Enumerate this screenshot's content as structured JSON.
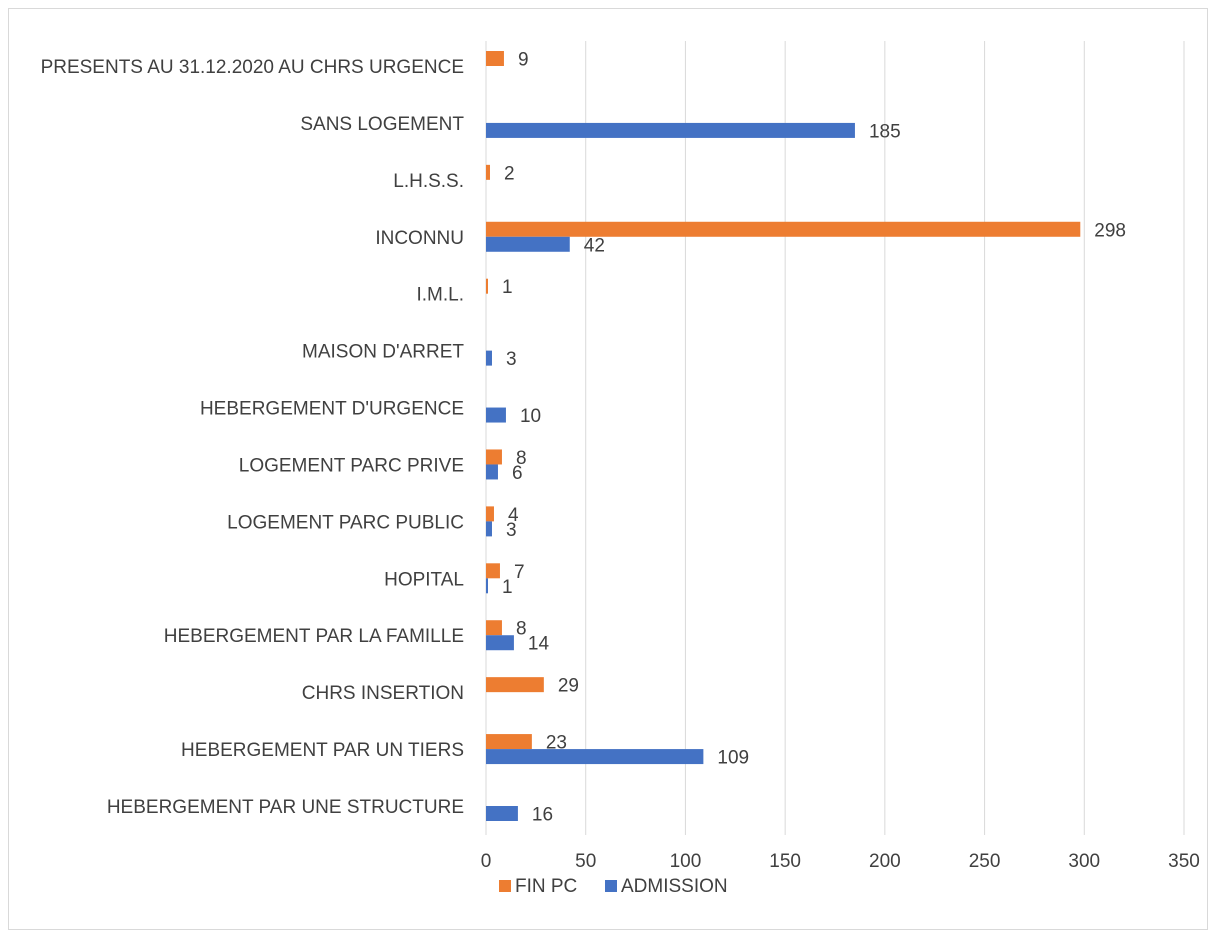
{
  "chart_data": {
    "type": "bar",
    "orientation": "horizontal",
    "title": "",
    "xlabel": "",
    "ylabel": "",
    "categories": [
      "HEBERGEMENT PAR UNE STRUCTURE",
      "HEBERGEMENT PAR UN TIERS",
      "CHRS INSERTION",
      "HEBERGEMENT PAR LA FAMILLE",
      "HOPITAL",
      "LOGEMENT PARC PUBLIC",
      "LOGEMENT PARC PRIVE",
      "HEBERGEMENT D'URGENCE",
      "MAISON D'ARRET",
      "I.M.L.",
      "INCONNU",
      "L.H.S.S.",
      "SANS LOGEMENT",
      "PRESENTS AU 31.12.2020 AU CHRS URGENCE"
    ],
    "series": [
      {
        "name": "FIN PC",
        "color": "#ED7D31",
        "values": [
          null,
          23,
          29,
          8,
          7,
          4,
          8,
          null,
          null,
          1,
          298,
          2,
          null,
          9
        ]
      },
      {
        "name": "ADMISSION",
        "color": "#4472C4",
        "values": [
          16,
          109,
          null,
          14,
          1,
          3,
          6,
          10,
          3,
          null,
          42,
          null,
          185,
          null
        ]
      }
    ],
    "xlim": [
      0,
      350
    ],
    "xticks": [
      "0",
      "50",
      "100",
      "150",
      "200",
      "250",
      "300",
      "350"
    ],
    "tick_values": [
      0,
      50,
      100,
      150,
      200,
      250,
      300,
      350
    ],
    "grid": "vertical",
    "legend": "bottom"
  }
}
